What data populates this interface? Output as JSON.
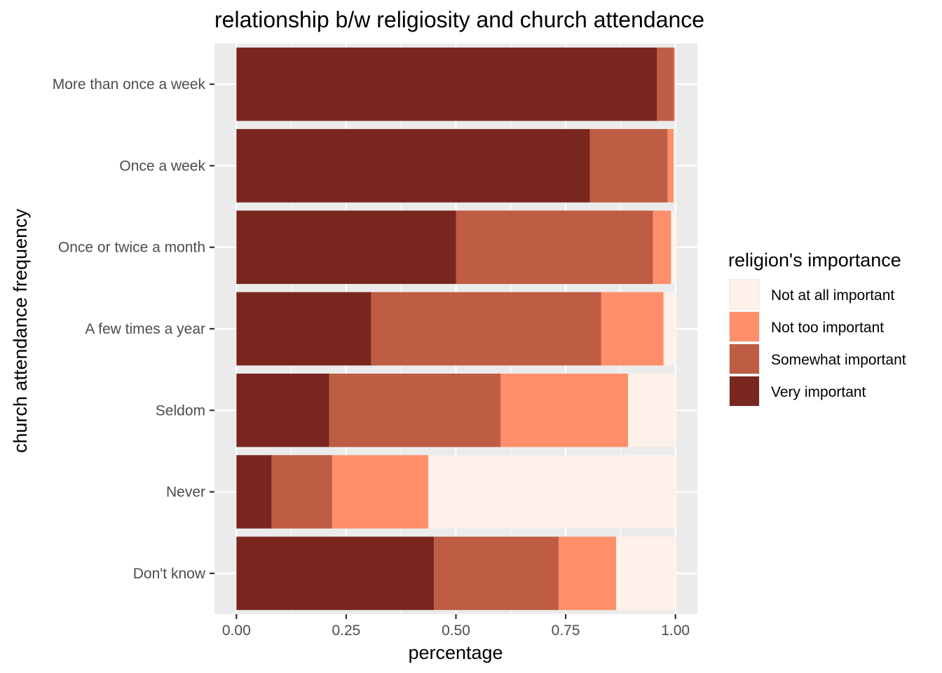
{
  "chart_data": {
    "type": "bar",
    "orientation": "horizontal",
    "stacked": true,
    "title": "relationship b/w religiosity and church attendance",
    "xlabel": "percentage",
    "ylabel": "church attendance frequency",
    "xlim": [
      0,
      1
    ],
    "x_ticks": [
      0,
      0.25,
      0.5,
      0.75,
      1
    ],
    "x_tick_labels": [
      "0.00",
      "0.25",
      "0.50",
      "0.75",
      "1.00"
    ],
    "categories": [
      "More than once a week",
      "Once a week",
      "Once or twice a month",
      "A few times a year",
      "Seldom",
      "Never",
      "Don't know"
    ],
    "series": [
      {
        "name": "Very important",
        "color": "#79261f",
        "values": [
          0.958,
          0.805,
          0.5,
          0.307,
          0.211,
          0.08,
          0.45
        ]
      },
      {
        "name": "Somewhat important",
        "color": "#be5c44",
        "values": [
          0.038,
          0.177,
          0.449,
          0.524,
          0.391,
          0.138,
          0.284
        ]
      },
      {
        "name": "Not too important",
        "color": "#fe8f6a",
        "values": [
          0.003,
          0.014,
          0.041,
          0.142,
          0.29,
          0.219,
          0.131
        ]
      },
      {
        "name": "Not at all important",
        "color": "#fdf1e9",
        "values": [
          0.001,
          0.004,
          0.01,
          0.027,
          0.108,
          0.563,
          0.135
        ]
      }
    ],
    "legend": {
      "title": "religion's importance",
      "position": "right",
      "order": [
        "Not at all important",
        "Not too important",
        "Somewhat important",
        "Very important"
      ]
    },
    "grid": true,
    "panel_background": "#ebebeb",
    "grid_color": "#ffffff"
  }
}
